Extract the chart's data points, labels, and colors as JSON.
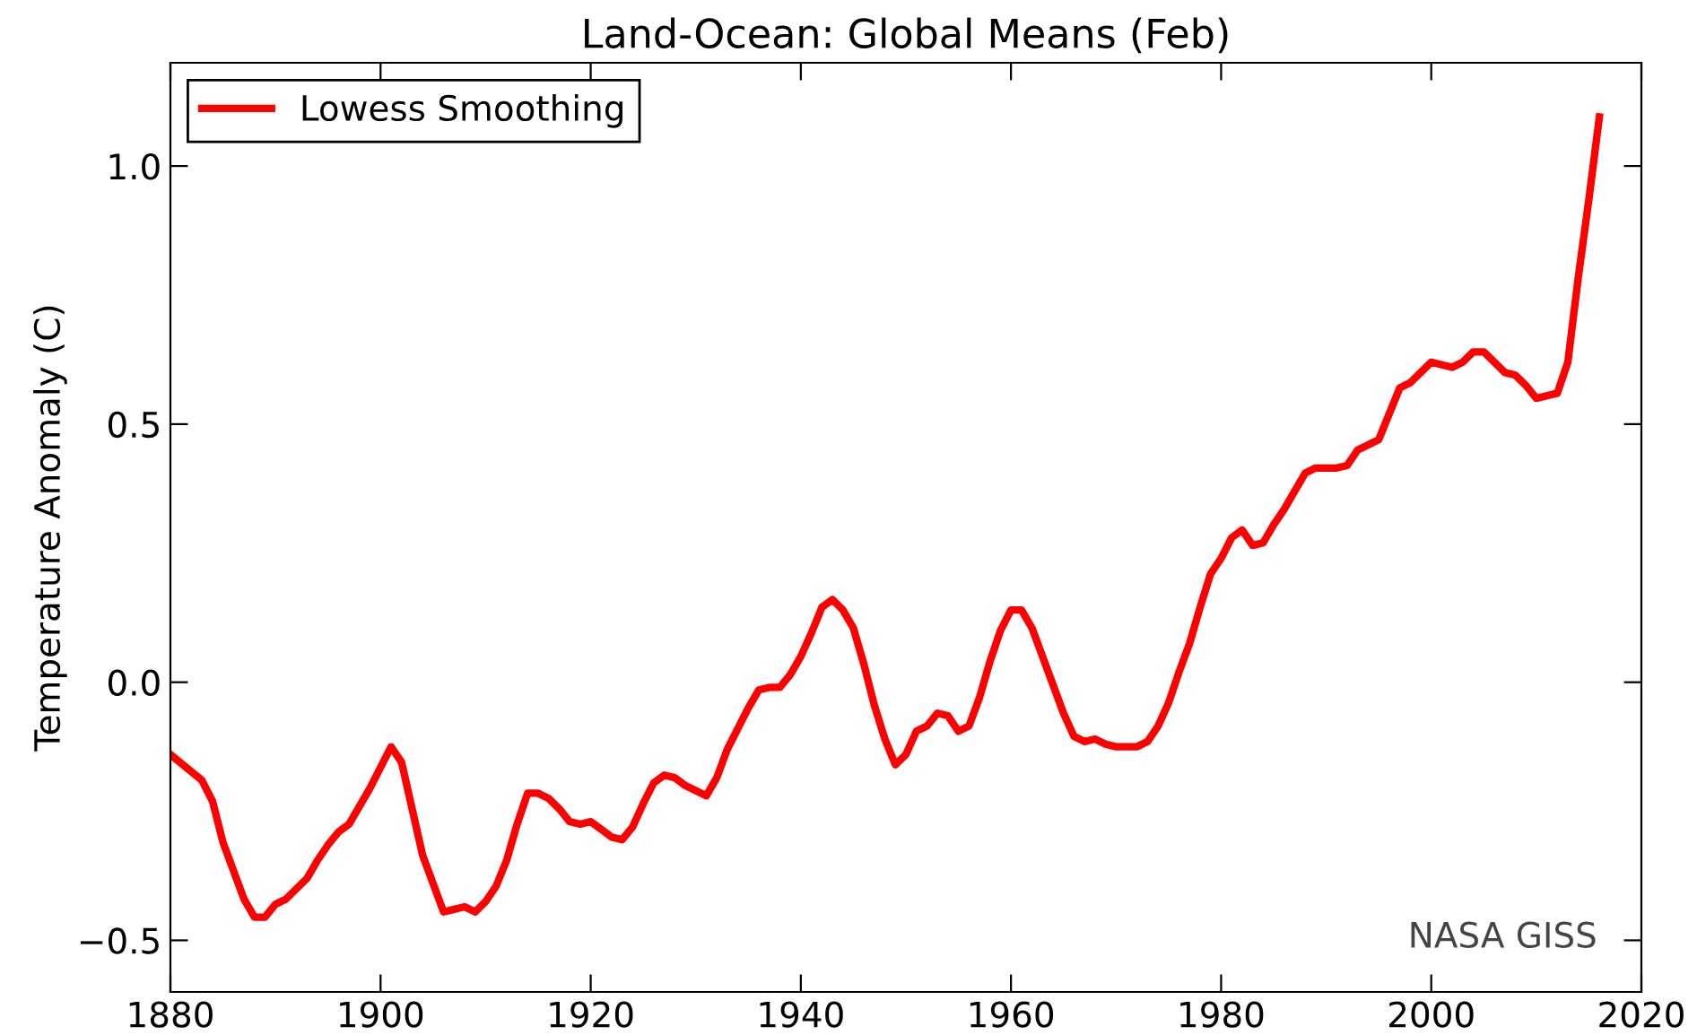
{
  "chart_data": {
    "type": "line",
    "title": "Land-Ocean: Global Means (Feb)",
    "ylabel": "Temperature Anomaly (C)",
    "x": [
      1880,
      1883,
      1884,
      1885,
      1887,
      1888,
      1889,
      1890,
      1891,
      1892,
      1893,
      1894,
      1895,
      1896,
      1897,
      1898,
      1899,
      1900,
      1901,
      1902,
      1903,
      1904,
      1905,
      1906,
      1907,
      1908,
      1909,
      1910,
      1911,
      1912,
      1913,
      1914,
      1915,
      1916,
      1917,
      1918,
      1919,
      1920,
      1921,
      1922,
      1923,
      1924,
      1925,
      1926,
      1927,
      1928,
      1929,
      1930,
      1931,
      1932,
      1933,
      1934,
      1935,
      1936,
      1937,
      1938,
      1939,
      1940,
      1941,
      1942,
      1943,
      1944,
      1945,
      1946,
      1947,
      1948,
      1949,
      1950,
      1951,
      1952,
      1953,
      1954,
      1955,
      1956,
      1957,
      1958,
      1959,
      1960,
      1961,
      1962,
      1963,
      1964,
      1965,
      1966,
      1967,
      1968,
      1969,
      1970,
      1971,
      1972,
      1973,
      1974,
      1975,
      1976,
      1977,
      1978,
      1979,
      1980,
      1981,
      1982,
      1983,
      1984,
      1985,
      1986,
      1987,
      1988,
      1989,
      1990,
      1991,
      1992,
      1993,
      1994,
      1995,
      1996,
      1997,
      1998,
      1999,
      2000,
      2001,
      2002,
      2003,
      2004,
      2005,
      2006,
      2007,
      2008,
      2009,
      2010,
      2011,
      2012,
      2013,
      2014,
      2015,
      2016
    ],
    "series": [
      {
        "name": "Lowess Smoothing",
        "color": "#ff0000",
        "values": [
          -0.14,
          -0.19,
          -0.23,
          -0.31,
          -0.42,
          -0.455,
          -0.455,
          -0.43,
          -0.42,
          -0.4,
          -0.38,
          -0.345,
          -0.315,
          -0.29,
          -0.275,
          -0.24,
          -0.205,
          -0.165,
          -0.125,
          -0.155,
          -0.245,
          -0.335,
          -0.39,
          -0.445,
          -0.44,
          -0.435,
          -0.445,
          -0.425,
          -0.395,
          -0.345,
          -0.275,
          -0.215,
          -0.215,
          -0.225,
          -0.245,
          -0.27,
          -0.275,
          -0.27,
          -0.285,
          -0.3,
          -0.305,
          -0.28,
          -0.235,
          -0.195,
          -0.18,
          -0.185,
          -0.2,
          -0.21,
          -0.22,
          -0.185,
          -0.13,
          -0.09,
          -0.05,
          -0.015,
          -0.01,
          -0.01,
          0.015,
          0.05,
          0.095,
          0.145,
          0.16,
          0.14,
          0.105,
          0.035,
          -0.045,
          -0.11,
          -0.16,
          -0.14,
          -0.095,
          -0.085,
          -0.06,
          -0.065,
          -0.095,
          -0.085,
          -0.03,
          0.04,
          0.1,
          0.14,
          0.14,
          0.105,
          0.05,
          -0.005,
          -0.06,
          -0.105,
          -0.115,
          -0.11,
          -0.12,
          -0.125,
          -0.125,
          -0.125,
          -0.115,
          -0.085,
          -0.04,
          0.02,
          0.075,
          0.145,
          0.21,
          0.24,
          0.28,
          0.295,
          0.265,
          0.27,
          0.305,
          0.335,
          0.37,
          0.405,
          0.415,
          0.415,
          0.415,
          0.42,
          0.45,
          0.46,
          0.47,
          0.52,
          0.57,
          0.58,
          0.6,
          0.62,
          0.615,
          0.61,
          0.62,
          0.64,
          0.64,
          0.62,
          0.6,
          0.595,
          0.575,
          0.55,
          0.555,
          0.56,
          0.62,
          0.785,
          0.935,
          1.095
        ]
      }
    ],
    "xlim": [
      1880,
      2020
    ],
    "xticks": [
      1880,
      1900,
      1920,
      1940,
      1960,
      1980,
      2000,
      2020
    ],
    "ylim": [
      -0.6,
      1.2
    ],
    "yticks": [
      {
        "value": -0.5,
        "label": "−0.5"
      },
      {
        "value": 0.0,
        "label": "0.0"
      },
      {
        "value": 0.5,
        "label": "0.5"
      },
      {
        "value": 1.0,
        "label": "1.0"
      }
    ],
    "annotations": [
      "NASA GISS"
    ],
    "legend": "top left",
    "grid": false
  }
}
